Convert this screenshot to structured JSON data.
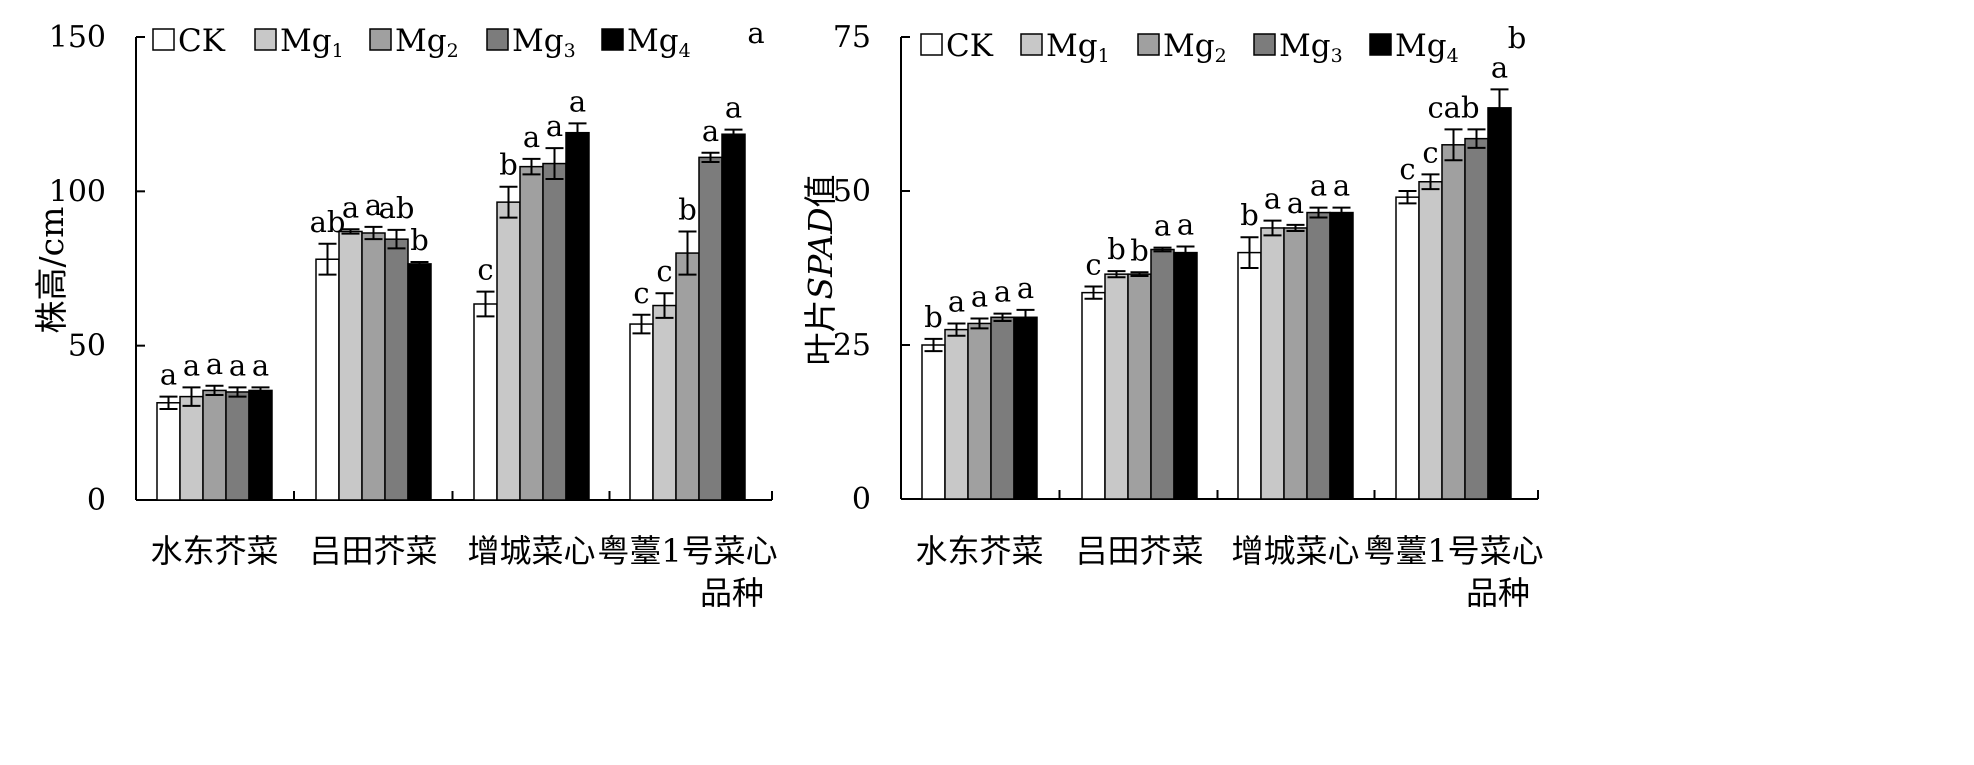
{
  "chart_data": [
    {
      "type": "bar",
      "ylabel": "株高/cm",
      "xlabel": "品种",
      "ylim": [
        0,
        150
      ],
      "yticks": [
        0,
        50,
        100,
        150
      ],
      "grid": false,
      "legend_position": "top",
      "categories": [
        "水东芥菜",
        "吕田芥菜",
        "增城菜心",
        "粤薹1号菜心"
      ],
      "series": [
        {
          "name": "CK",
          "color": "#ffffff",
          "values": [
            31.5,
            78,
            63.5,
            57
          ],
          "errors": [
            2,
            5,
            4,
            3
          ]
        },
        {
          "name": "Mg1",
          "color": "#c8c8c8",
          "values": [
            33.5,
            87,
            96.5,
            63
          ],
          "errors": [
            3,
            0.7,
            5,
            4
          ]
        },
        {
          "name": "Mg2",
          "color": "#a0a0a0",
          "values": [
            35.5,
            86.5,
            108,
            80
          ],
          "errors": [
            1.5,
            2,
            2.5,
            7
          ]
        },
        {
          "name": "Mg3",
          "color": "#7c7c7c",
          "values": [
            35,
            84.5,
            109,
            111
          ],
          "errors": [
            1.5,
            3,
            5,
            1.5
          ]
        },
        {
          "name": "Mg4",
          "color": "#000000",
          "values": [
            35.5,
            76.5,
            119,
            118.5
          ],
          "errors": [
            1,
            0.6,
            3,
            1.5
          ]
        }
      ],
      "significance": [
        [
          "a",
          "a",
          "a",
          "a",
          "a"
        ],
        [
          "ab",
          "a",
          "a",
          "ab",
          "b"
        ],
        [
          "c",
          "b",
          "a",
          "a",
          "a"
        ],
        [
          "c",
          "c",
          "b",
          "a",
          "a"
        ]
      ],
      "stray_label": "a"
    },
    {
      "type": "bar",
      "ylabel": "叶片SPAD值",
      "ylabel_parts": [
        "叶片",
        "SPAD",
        "值"
      ],
      "xlabel": "品种",
      "ylim": [
        0,
        75
      ],
      "yticks": [
        0,
        25,
        50,
        75
      ],
      "grid": false,
      "legend_position": "top",
      "categories": [
        "水东芥菜",
        "吕田芥菜",
        "增城菜心",
        "粤薹1号菜心"
      ],
      "series": [
        {
          "name": "CK",
          "color": "#ffffff",
          "values": [
            25,
            33.5,
            40,
            49
          ],
          "errors": [
            1,
            1,
            2.5,
            1
          ]
        },
        {
          "name": "Mg1",
          "color": "#c8c8c8",
          "values": [
            27.5,
            36.5,
            44,
            51.5
          ],
          "errors": [
            1,
            0.5,
            1.2,
            1.2
          ]
        },
        {
          "name": "Mg2",
          "color": "#a0a0a0",
          "values": [
            28.5,
            36.5,
            44,
            57.5
          ],
          "errors": [
            0.8,
            0.3,
            0.5,
            2.5
          ]
        },
        {
          "name": "Mg3",
          "color": "#7c7c7c",
          "values": [
            29.5,
            40.5,
            46.5,
            58.5
          ],
          "errors": [
            0.6,
            0.3,
            0.8,
            1.5
          ]
        },
        {
          "name": "Mg4",
          "color": "#000000",
          "values": [
            29.5,
            40,
            46.5,
            63.5
          ],
          "errors": [
            1.2,
            1,
            0.8,
            3
          ]
        }
      ],
      "significance": [
        [
          "b",
          "a",
          "a",
          "a",
          "a"
        ],
        [
          "c",
          "b",
          "b",
          "a",
          "a"
        ],
        [
          "b",
          "a",
          "a",
          "a",
          "a"
        ],
        [
          "c",
          "c",
          "cab",
          "",
          "a"
        ]
      ],
      "stray_label": "b"
    }
  ]
}
